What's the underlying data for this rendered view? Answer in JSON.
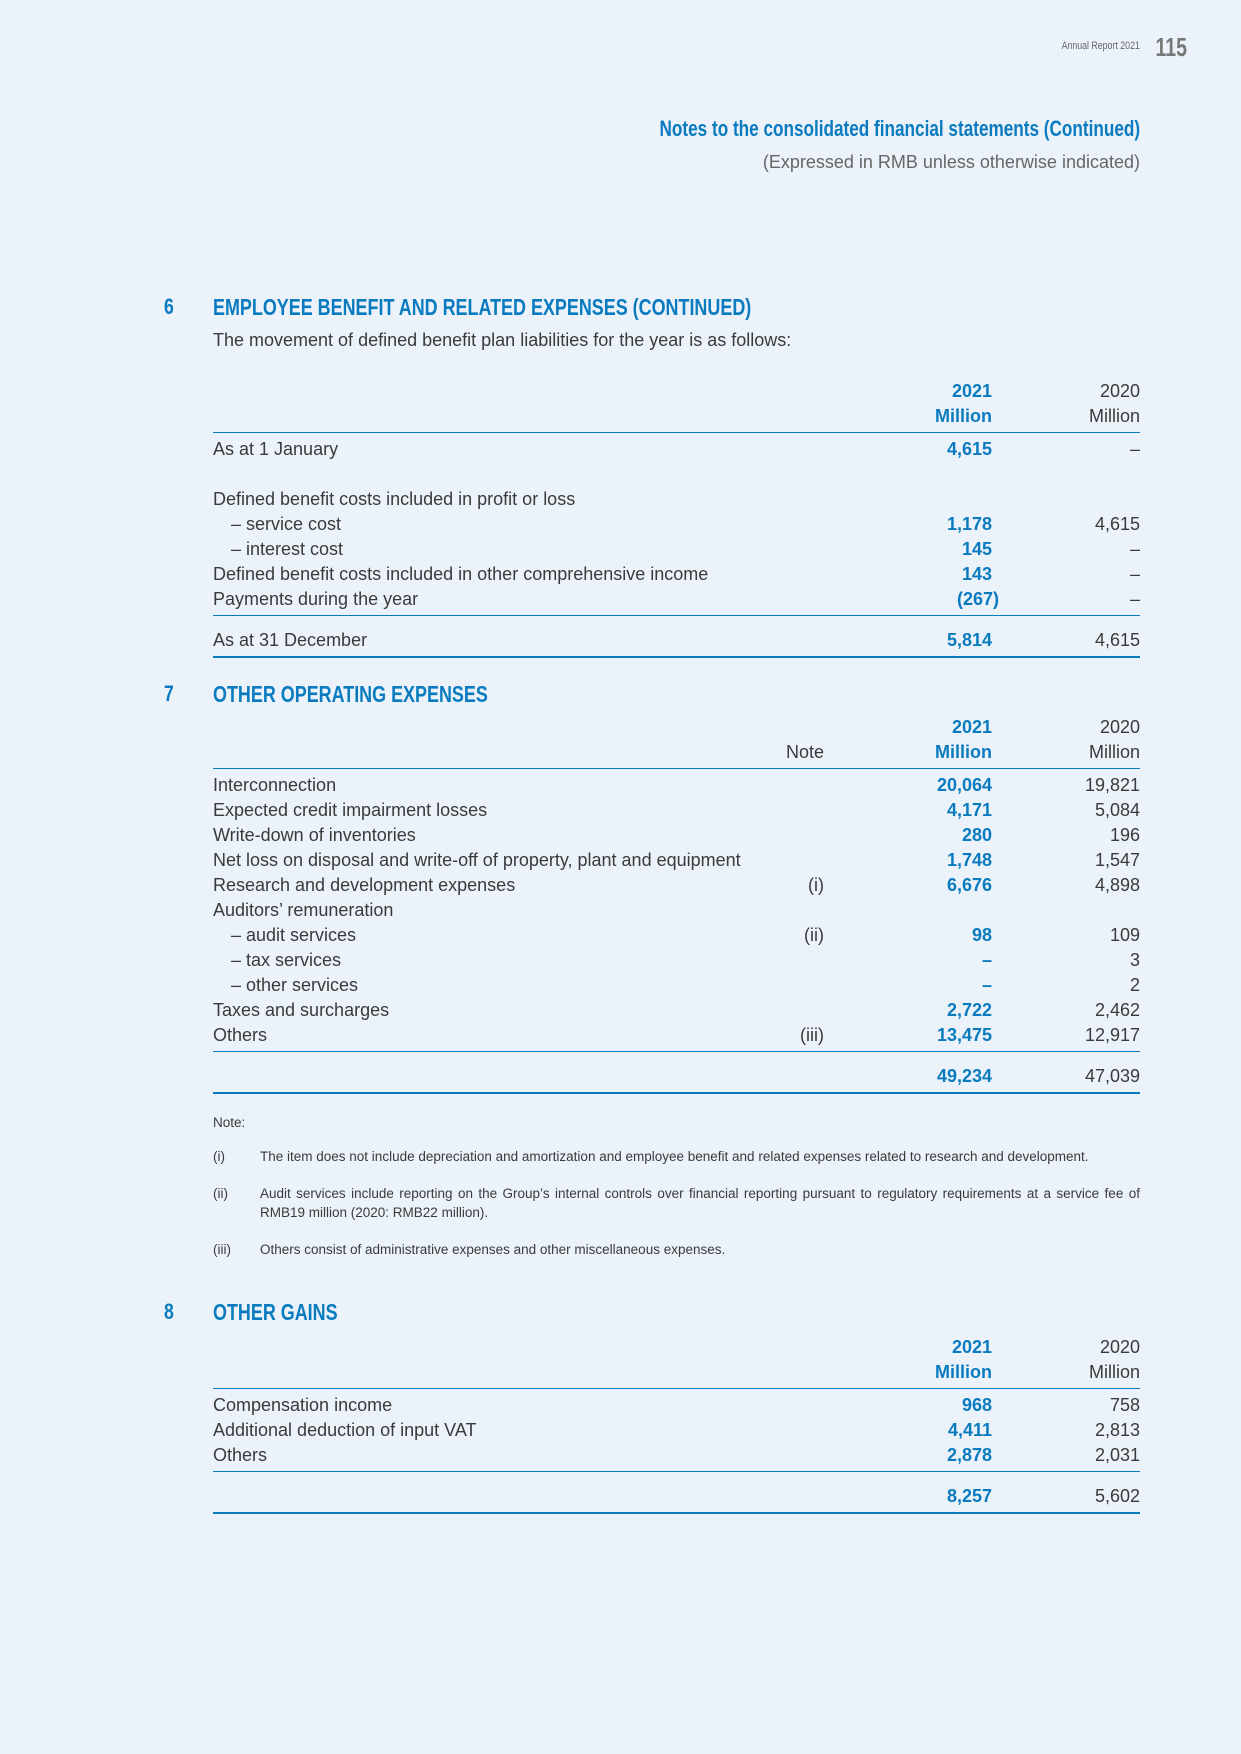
{
  "header": {
    "report": "Annual Report 2021",
    "page": "115",
    "title": "Notes to the consolidated financial statements (Continued)",
    "subtitle": "(Expressed in RMB unless otherwise indicated)"
  },
  "colors": {
    "accent": "#0a7bbf",
    "background": "#ebf2fa"
  },
  "s6": {
    "num": "6",
    "title": "EMPLOYEE BENEFIT AND RELATED EXPENSES (CONTINUED)",
    "intro": "The movement of defined benefit plan liabilities for the year is as follows:",
    "head": {
      "y1": "2021",
      "y2": "2020",
      "u1": "Million",
      "u2": "Million"
    },
    "rows": [
      {
        "label": "As at 1 January",
        "v21": "4,615",
        "v20": "–"
      },
      {
        "label": "Defined benefit costs included in profit or loss",
        "v21": "",
        "v20": ""
      },
      {
        "label": "– service cost",
        "v21": "1,178",
        "v20": "4,615"
      },
      {
        "label": "– interest cost",
        "v21": "145",
        "v20": "–"
      },
      {
        "label": "Defined benefit costs included in other comprehensive income",
        "v21": "143",
        "v20": "–"
      },
      {
        "label": "Payments during the year",
        "v21": "(267)",
        "v20": "–"
      }
    ],
    "total": {
      "label": "As at 31 December",
      "v21": "5,814",
      "v20": "4,615"
    }
  },
  "s7": {
    "num": "7",
    "title": "OTHER OPERATING EXPENSES",
    "head": {
      "note": "Note",
      "y1": "2021",
      "y2": "2020",
      "u1": "Million",
      "u2": "Million"
    },
    "rows": [
      {
        "label": "Interconnection",
        "note": "",
        "v21": "20,064",
        "v20": "19,821"
      },
      {
        "label": "Expected credit impairment losses",
        "note": "",
        "v21": "4,171",
        "v20": "5,084"
      },
      {
        "label": "Write-down of inventories",
        "note": "",
        "v21": "280",
        "v20": "196"
      },
      {
        "label": "Net loss on disposal and write-off of property, plant and equipment",
        "note": "",
        "v21": "1,748",
        "v20": "1,547"
      },
      {
        "label": "Research and development expenses",
        "note": "(i)",
        "v21": "6,676",
        "v20": "4,898"
      },
      {
        "label": "Auditors’ remuneration",
        "note": "",
        "v21": "",
        "v20": ""
      },
      {
        "label": "– audit services",
        "note": "(ii)",
        "v21": "98",
        "v20": "109"
      },
      {
        "label": "– tax services",
        "note": "",
        "v21": "–",
        "v20": "3"
      },
      {
        "label": "– other services",
        "note": "",
        "v21": "–",
        "v20": "2"
      },
      {
        "label": "Taxes and surcharges",
        "note": "",
        "v21": "2,722",
        "v20": "2,462"
      },
      {
        "label": "Others",
        "note": "(iii)",
        "v21": "13,475",
        "v20": "12,917"
      }
    ],
    "total": {
      "label": "",
      "v21": "49,234",
      "v20": "47,039"
    },
    "notes_title": "Note:",
    "notes": [
      {
        "key": "(i)",
        "text": "The item does not include depreciation and amortization and employee benefit and related expenses related to research and development."
      },
      {
        "key": "(ii)",
        "text": "Audit services include reporting on the Group’s internal controls over financial reporting pursuant to regulatory requirements at a service fee of RMB19 million (2020: RMB22 million)."
      },
      {
        "key": "(iii)",
        "text": "Others consist of administrative expenses and other miscellaneous expenses."
      }
    ]
  },
  "s8": {
    "num": "8",
    "title": "OTHER GAINS",
    "head": {
      "y1": "2021",
      "y2": "2020",
      "u1": "Million",
      "u2": "Million"
    },
    "rows": [
      {
        "label": "Compensation income",
        "v21": "968",
        "v20": "758"
      },
      {
        "label": "Additional deduction of input VAT",
        "v21": "4,411",
        "v20": "2,813"
      },
      {
        "label": "Others",
        "v21": "2,878",
        "v20": "2,031"
      }
    ],
    "total": {
      "label": "",
      "v21": "8,257",
      "v20": "5,602"
    }
  }
}
